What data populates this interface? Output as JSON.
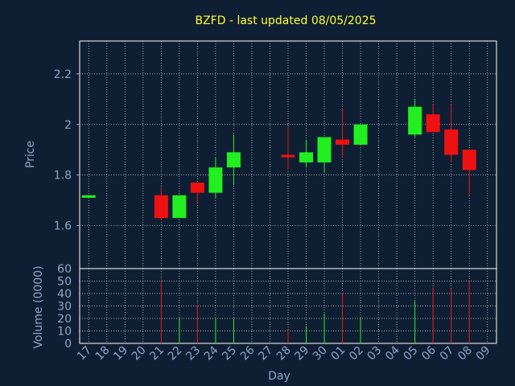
{
  "chart_data": {
    "type": "candlestick",
    "title": "BZFD - last updated 08/05/2025",
    "xlabel": "Day",
    "colors": {
      "background": "#0f1f33",
      "up": "#22ee22",
      "down": "#ee1111",
      "grid": "#ffffff",
      "title": "#ffff33",
      "axis_text": "#8fa6c8"
    },
    "x_ticks": [
      "17",
      "18",
      "19",
      "20",
      "21",
      "22",
      "23",
      "24",
      "25",
      "26",
      "27",
      "28",
      "29",
      "30",
      "01",
      "02",
      "03",
      "04",
      "05",
      "06",
      "07",
      "08",
      "09"
    ],
    "price_panel": {
      "ylabel": "Price",
      "ylim": [
        1.43,
        2.33
      ],
      "y_ticks": [
        "1.6",
        "1.8",
        "2",
        "2.2"
      ],
      "y_tick_values": [
        1.6,
        1.8,
        2.0,
        2.2
      ]
    },
    "volume_panel": {
      "ylabel": "Volume (0000)",
      "ylim": [
        0,
        60
      ],
      "y_ticks": [
        "0",
        "10",
        "20",
        "30",
        "40",
        "50",
        "60"
      ],
      "y_tick_values": [
        0,
        10,
        20,
        30,
        40,
        50,
        60
      ]
    },
    "candles": [
      {
        "day": "17",
        "open": 1.71,
        "high": 1.72,
        "low": 1.71,
        "close": 1.72,
        "volume": 0
      },
      {
        "day": "21",
        "open": 1.72,
        "high": 1.75,
        "low": 1.62,
        "close": 1.63,
        "volume": 50
      },
      {
        "day": "22",
        "open": 1.63,
        "high": 1.72,
        "low": 1.63,
        "close": 1.72,
        "volume": 21
      },
      {
        "day": "23",
        "open": 1.77,
        "high": 1.77,
        "low": 1.69,
        "close": 1.73,
        "volume": 31
      },
      {
        "day": "24",
        "open": 1.73,
        "high": 1.87,
        "low": 1.71,
        "close": 1.83,
        "volume": 20
      },
      {
        "day": "25",
        "open": 1.83,
        "high": 1.96,
        "low": 1.76,
        "close": 1.89,
        "volume": 19
      },
      {
        "day": "28",
        "open": 1.88,
        "high": 1.99,
        "low": 1.82,
        "close": 1.87,
        "volume": 11
      },
      {
        "day": "29",
        "open": 1.85,
        "high": 1.94,
        "low": 1.83,
        "close": 1.89,
        "volume": 14
      },
      {
        "day": "30",
        "open": 1.85,
        "high": 1.95,
        "low": 1.81,
        "close": 1.95,
        "volume": 24
      },
      {
        "day": "01",
        "open": 1.94,
        "high": 2.06,
        "low": 1.87,
        "close": 1.92,
        "volume": 41
      },
      {
        "day": "02",
        "open": 1.92,
        "high": 2.0,
        "low": 1.92,
        "close": 2.0,
        "volume": 21
      },
      {
        "day": "05",
        "open": 1.96,
        "high": 2.1,
        "low": 1.95,
        "close": 2.07,
        "volume": 34
      },
      {
        "day": "06",
        "open": 2.04,
        "high": 2.08,
        "low": 1.97,
        "close": 1.97,
        "volume": 45
      },
      {
        "day": "07",
        "open": 1.98,
        "high": 2.08,
        "low": 1.85,
        "close": 1.88,
        "volume": 44
      },
      {
        "day": "08",
        "open": 1.9,
        "high": 1.9,
        "low": 1.72,
        "close": 1.82,
        "volume": 50
      }
    ]
  }
}
